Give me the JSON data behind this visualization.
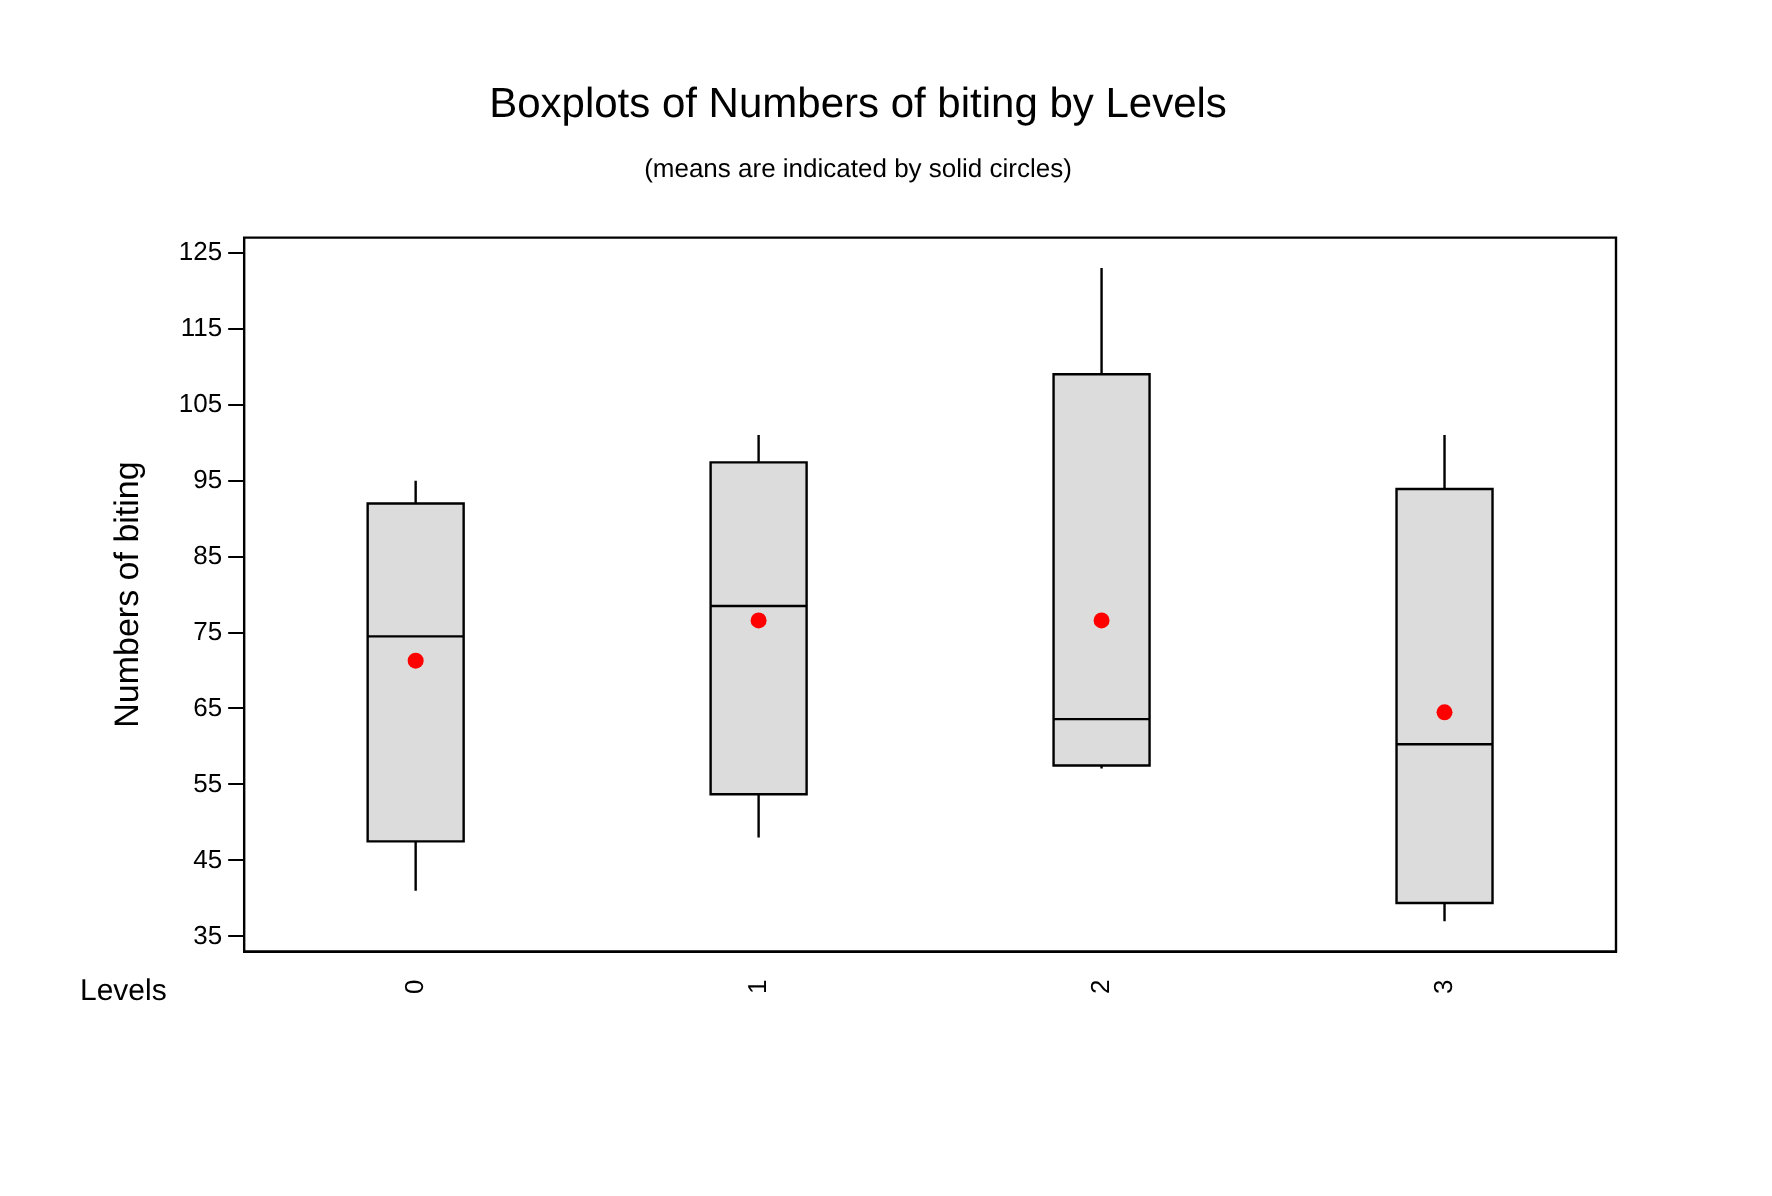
{
  "chart_data": {
    "type": "box",
    "title": "Boxplots of Numbers of biting by Levels",
    "subtitle": "(means are indicated by solid circles)",
    "xlabel": "Levels",
    "ylabel": "Numbers of biting",
    "categories": [
      "0",
      "1",
      "2",
      "3"
    ],
    "boxes": [
      {
        "low": 41,
        "q1": 47.5,
        "median": 74.5,
        "q3": 92,
        "high": 95,
        "mean": 71.3
      },
      {
        "low": 48,
        "q1": 53.7,
        "median": 78.5,
        "q3": 97.4,
        "high": 101,
        "mean": 76.6
      },
      {
        "low": 57.1,
        "q1": 57.5,
        "median": 63.6,
        "q3": 109,
        "high": 123,
        "mean": 76.6
      },
      {
        "low": 37,
        "q1": 39.4,
        "median": 60.3,
        "q3": 93.9,
        "high": 101,
        "mean": 64.5
      }
    ],
    "color": "#dcdcdc",
    "ylim": [
      33,
      127
    ],
    "yticks": [
      35,
      45,
      55,
      65,
      75,
      85,
      95,
      105,
      115,
      125
    ],
    "grid": false,
    "legend": false
  }
}
